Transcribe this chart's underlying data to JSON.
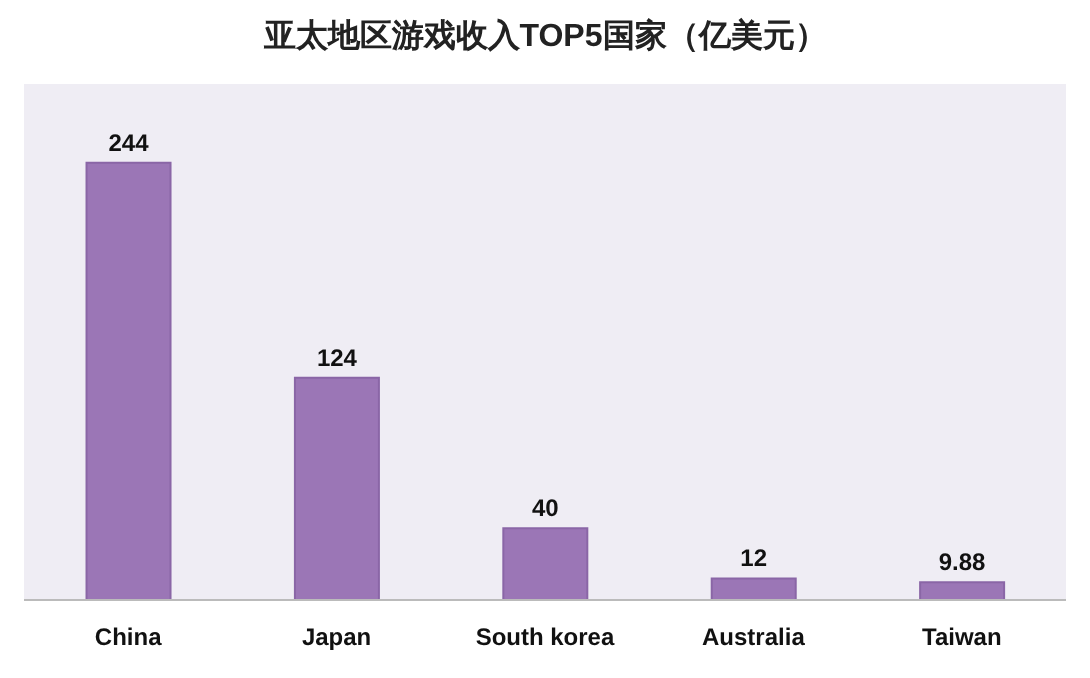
{
  "chart_data": {
    "type": "bar",
    "title": "亚太地区游戏收入TOP5国家（亿美元）",
    "categories": [
      "China",
      "Japan",
      "South korea",
      "Australia",
      "Taiwan"
    ],
    "values": [
      244,
      124,
      40,
      12,
      9.88
    ],
    "color": "#9b76b6",
    "data_labels": true
  }
}
